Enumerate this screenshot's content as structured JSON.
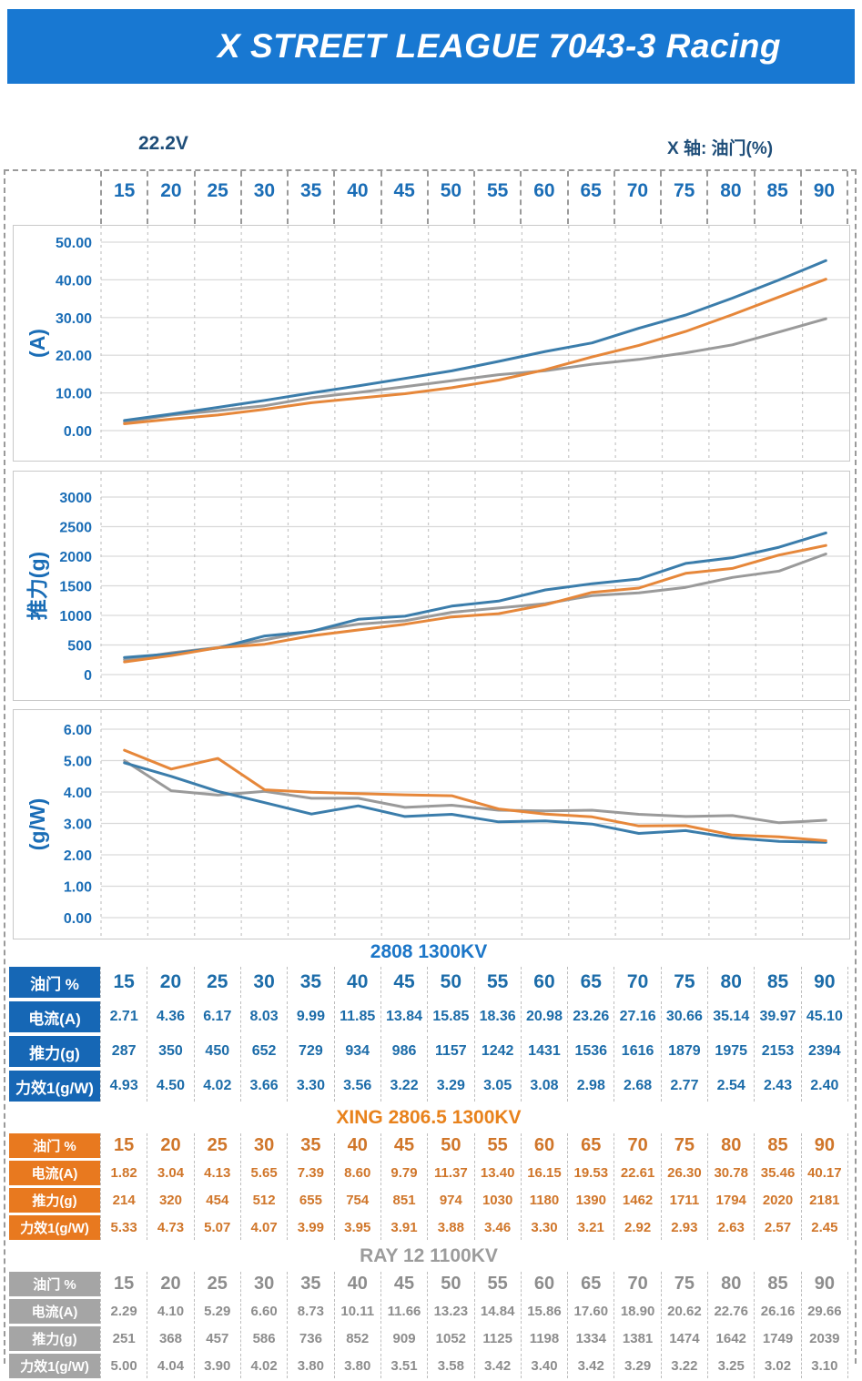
{
  "header": {
    "title": "X STREET LEAGUE 7043-3 Racing"
  },
  "meta": {
    "voltage_label": "22.2V",
    "x_axis_title": "X 轴: 油门(%)"
  },
  "throttle_ticks": [
    "15",
    "20",
    "25",
    "30",
    "35",
    "40",
    "45",
    "50",
    "55",
    "60",
    "65",
    "70",
    "75",
    "80",
    "85",
    "90"
  ],
  "palette": {
    "title_bar_bg": "#1878d2",
    "axis_text": "#1a6db6",
    "dark_label": "#1f4e79",
    "frame_dash": "#9a9a9a",
    "chart_border": "#c9c9c9",
    "grid_h": "#d9d9d9",
    "grid_v": "#c6c6c6",
    "series_blue": "#3b7dab",
    "series_orange": "#e6873a",
    "series_gray": "#9a9a9a",
    "blue_header_bg": "#1667b5",
    "blue_text": "#1c6ca9",
    "blue_title": "#1b76c8",
    "orange_header_bg": "#e8791f",
    "orange_text": "#d0762a",
    "orange_title": "#e8821c",
    "gray_header_bg": "#a5a5a5",
    "gray_text": "#8d8d8d",
    "gray_title": "#9c9c9c"
  },
  "chart_data": [
    {
      "type": "line",
      "ylabel": "(A)",
      "xlabel": "油门(%)",
      "x": [
        15,
        20,
        25,
        30,
        35,
        40,
        45,
        50,
        55,
        60,
        65,
        70,
        75,
        80,
        85,
        90
      ],
      "ylim": [
        0,
        50
      ],
      "ytick_values": [
        0,
        10,
        20,
        30,
        40,
        50
      ],
      "ytick_labels": [
        "0.00",
        "10.00",
        "20.00",
        "30.00",
        "40.00",
        "50.00"
      ],
      "grid": true,
      "legend": "none",
      "series": [
        {
          "name": "2808 1300KV",
          "color_key": "series_blue",
          "values": [
            2.71,
            4.36,
            6.17,
            8.03,
            9.99,
            11.85,
            13.84,
            15.85,
            18.36,
            20.98,
            23.26,
            27.16,
            30.66,
            35.14,
            39.97,
            45.1
          ]
        },
        {
          "name": "XING 2806.5 1300KV",
          "color_key": "series_orange",
          "values": [
            1.82,
            3.04,
            4.13,
            5.65,
            7.39,
            8.6,
            9.79,
            11.37,
            13.4,
            16.15,
            19.53,
            22.61,
            26.3,
            30.78,
            35.46,
            40.17
          ]
        },
        {
          "name": "RAY 12 1100KV",
          "color_key": "series_gray",
          "values": [
            2.29,
            4.1,
            5.29,
            6.6,
            8.73,
            10.11,
            11.66,
            13.23,
            14.84,
            15.86,
            17.6,
            18.9,
            20.62,
            22.76,
            26.16,
            29.66
          ]
        }
      ]
    },
    {
      "type": "line",
      "ylabel": "推力(g)",
      "xlabel": "油门(%)",
      "x": [
        15,
        20,
        25,
        30,
        35,
        40,
        45,
        50,
        55,
        60,
        65,
        70,
        75,
        80,
        85,
        90
      ],
      "ylim": [
        0,
        3000
      ],
      "ytick_values": [
        0,
        500,
        1000,
        1500,
        2000,
        2500,
        3000
      ],
      "ytick_labels": [
        "0",
        "500",
        "1000",
        "1500",
        "2000",
        "2500",
        "3000"
      ],
      "grid": true,
      "legend": "none",
      "series": [
        {
          "name": "2808 1300KV",
          "color_key": "series_blue",
          "values": [
            287,
            350,
            450,
            652,
            729,
            934,
            986,
            1157,
            1242,
            1431,
            1536,
            1616,
            1879,
            1975,
            2153,
            2394
          ]
        },
        {
          "name": "XING 2806.5 1300KV",
          "color_key": "series_orange",
          "values": [
            214,
            320,
            454,
            512,
            655,
            754,
            851,
            974,
            1030,
            1180,
            1390,
            1462,
            1711,
            1794,
            2020,
            2181
          ]
        },
        {
          "name": "RAY 12 1100KV",
          "color_key": "series_gray",
          "values": [
            251,
            368,
            457,
            586,
            736,
            852,
            909,
            1052,
            1125,
            1198,
            1334,
            1381,
            1474,
            1642,
            1749,
            2039
          ]
        }
      ]
    },
    {
      "type": "line",
      "ylabel": "(g/W)",
      "xlabel": "油门(%)",
      "x": [
        15,
        20,
        25,
        30,
        35,
        40,
        45,
        50,
        55,
        60,
        65,
        70,
        75,
        80,
        85,
        90
      ],
      "ylim": [
        0,
        6
      ],
      "ytick_values": [
        0,
        1,
        2,
        3,
        4,
        5,
        6
      ],
      "ytick_labels": [
        "0.00",
        "1.00",
        "2.00",
        "3.00",
        "4.00",
        "5.00",
        "6.00"
      ],
      "grid": true,
      "legend": "none",
      "series": [
        {
          "name": "2808 1300KV",
          "color_key": "series_blue",
          "values": [
            4.93,
            4.5,
            4.02,
            3.66,
            3.3,
            3.56,
            3.22,
            3.29,
            3.05,
            3.08,
            2.98,
            2.68,
            2.77,
            2.54,
            2.43,
            2.4
          ]
        },
        {
          "name": "XING 2806.5 1300KV",
          "color_key": "series_orange",
          "values": [
            5.33,
            4.73,
            5.07,
            4.07,
            3.99,
            3.95,
            3.91,
            3.88,
            3.46,
            3.3,
            3.21,
            2.92,
            2.93,
            2.63,
            2.57,
            2.45
          ]
        },
        {
          "name": "RAY 12 1100KV",
          "color_key": "series_gray",
          "values": [
            5.0,
            4.04,
            3.9,
            4.02,
            3.8,
            3.8,
            3.51,
            3.58,
            3.42,
            3.4,
            3.42,
            3.29,
            3.22,
            3.25,
            3.02,
            3.1
          ]
        }
      ]
    }
  ],
  "tables": [
    {
      "title": "2808 1300KV",
      "theme": "blue",
      "rows": [
        {
          "label": "油门 %",
          "header": true,
          "values": [
            "15",
            "20",
            "25",
            "30",
            "35",
            "40",
            "45",
            "50",
            "55",
            "60",
            "65",
            "70",
            "75",
            "80",
            "85",
            "90"
          ]
        },
        {
          "label": "电流(A)",
          "values": [
            "2.71",
            "4.36",
            "6.17",
            "8.03",
            "9.99",
            "11.85",
            "13.84",
            "15.85",
            "18.36",
            "20.98",
            "23.26",
            "27.16",
            "30.66",
            "35.14",
            "39.97",
            "45.10"
          ]
        },
        {
          "label": "推力(g)",
          "values": [
            "287",
            "350",
            "450",
            "652",
            "729",
            "934",
            "986",
            "1157",
            "1242",
            "1431",
            "1536",
            "1616",
            "1879",
            "1975",
            "2153",
            "2394"
          ]
        },
        {
          "label": "力效1(g/W)",
          "values": [
            "4.93",
            "4.50",
            "4.02",
            "3.66",
            "3.30",
            "3.56",
            "3.22",
            "3.29",
            "3.05",
            "3.08",
            "2.98",
            "2.68",
            "2.77",
            "2.54",
            "2.43",
            "2.40"
          ]
        }
      ]
    },
    {
      "title": "XING 2806.5 1300KV",
      "theme": "orange",
      "rows": [
        {
          "label": "油门 %",
          "header": true,
          "values": [
            "15",
            "20",
            "25",
            "30",
            "35",
            "40",
            "45",
            "50",
            "55",
            "60",
            "65",
            "70",
            "75",
            "80",
            "85",
            "90"
          ]
        },
        {
          "label": "电流(A)",
          "values": [
            "1.82",
            "3.04",
            "4.13",
            "5.65",
            "7.39",
            "8.60",
            "9.79",
            "11.37",
            "13.40",
            "16.15",
            "19.53",
            "22.61",
            "26.30",
            "30.78",
            "35.46",
            "40.17"
          ]
        },
        {
          "label": "推力(g)",
          "values": [
            "214",
            "320",
            "454",
            "512",
            "655",
            "754",
            "851",
            "974",
            "1030",
            "1180",
            "1390",
            "1462",
            "1711",
            "1794",
            "2020",
            "2181"
          ]
        },
        {
          "label": "力效1(g/W)",
          "values": [
            "5.33",
            "4.73",
            "5.07",
            "4.07",
            "3.99",
            "3.95",
            "3.91",
            "3.88",
            "3.46",
            "3.30",
            "3.21",
            "2.92",
            "2.93",
            "2.63",
            "2.57",
            "2.45"
          ]
        }
      ]
    },
    {
      "title": "RAY 12 1100KV",
      "theme": "gray",
      "rows": [
        {
          "label": "油门 %",
          "header": true,
          "values": [
            "15",
            "20",
            "25",
            "30",
            "35",
            "40",
            "45",
            "50",
            "55",
            "60",
            "65",
            "70",
            "75",
            "80",
            "85",
            "90"
          ]
        },
        {
          "label": "电流(A)",
          "values": [
            "2.29",
            "4.10",
            "5.29",
            "6.60",
            "8.73",
            "10.11",
            "11.66",
            "13.23",
            "14.84",
            "15.86",
            "17.60",
            "18.90",
            "20.62",
            "22.76",
            "26.16",
            "29.66"
          ]
        },
        {
          "label": "推力(g)",
          "values": [
            "251",
            "368",
            "457",
            "586",
            "736",
            "852",
            "909",
            "1052",
            "1125",
            "1198",
            "1334",
            "1381",
            "1474",
            "1642",
            "1749",
            "2039"
          ]
        },
        {
          "label": "力效1(g/W)",
          "values": [
            "5.00",
            "4.04",
            "3.90",
            "4.02",
            "3.80",
            "3.80",
            "3.51",
            "3.58",
            "3.42",
            "3.40",
            "3.42",
            "3.29",
            "3.22",
            "3.25",
            "3.02",
            "3.10"
          ]
        }
      ]
    }
  ]
}
